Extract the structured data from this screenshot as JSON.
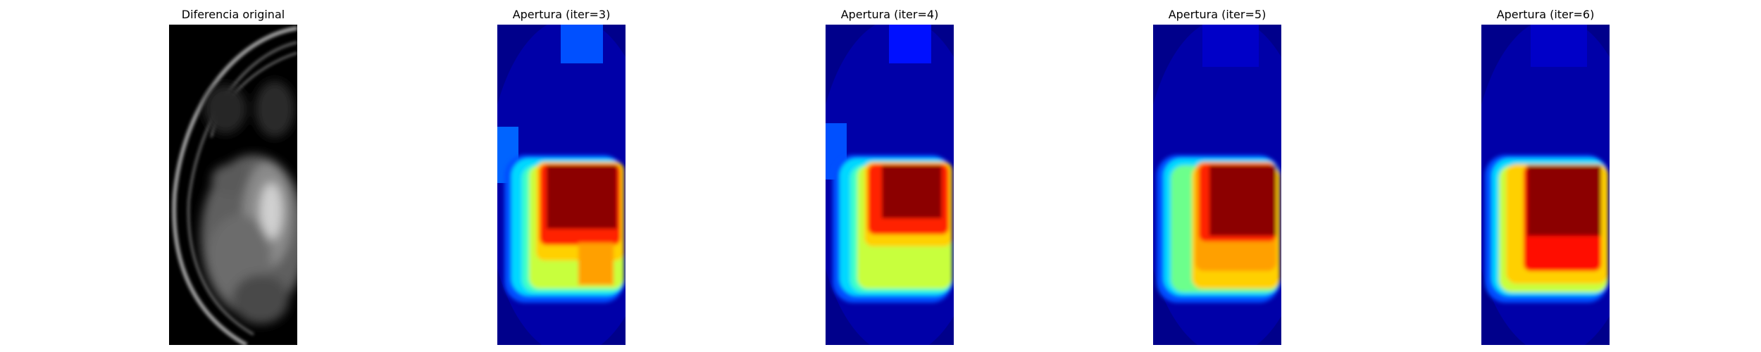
{
  "figure": {
    "panels": [
      {
        "title": "Diferencia original",
        "kind": "grayscale",
        "colormap": "gray",
        "iter": null
      },
      {
        "title": "Apertura (iter=3)",
        "kind": "heatmap",
        "colormap": "jet",
        "iter": 3
      },
      {
        "title": "Apertura (iter=4)",
        "kind": "heatmap",
        "colormap": "jet",
        "iter": 4
      },
      {
        "title": "Apertura (iter=5)",
        "kind": "heatmap",
        "colormap": "jet",
        "iter": 5
      },
      {
        "title": "Apertura (iter=6)",
        "kind": "heatmap",
        "colormap": "jet",
        "iter": 6
      }
    ],
    "colors": {
      "background": "#ffffff",
      "jet_low": "#00008b",
      "jet_mid": "#00ffff",
      "jet_high": "#800000"
    }
  }
}
